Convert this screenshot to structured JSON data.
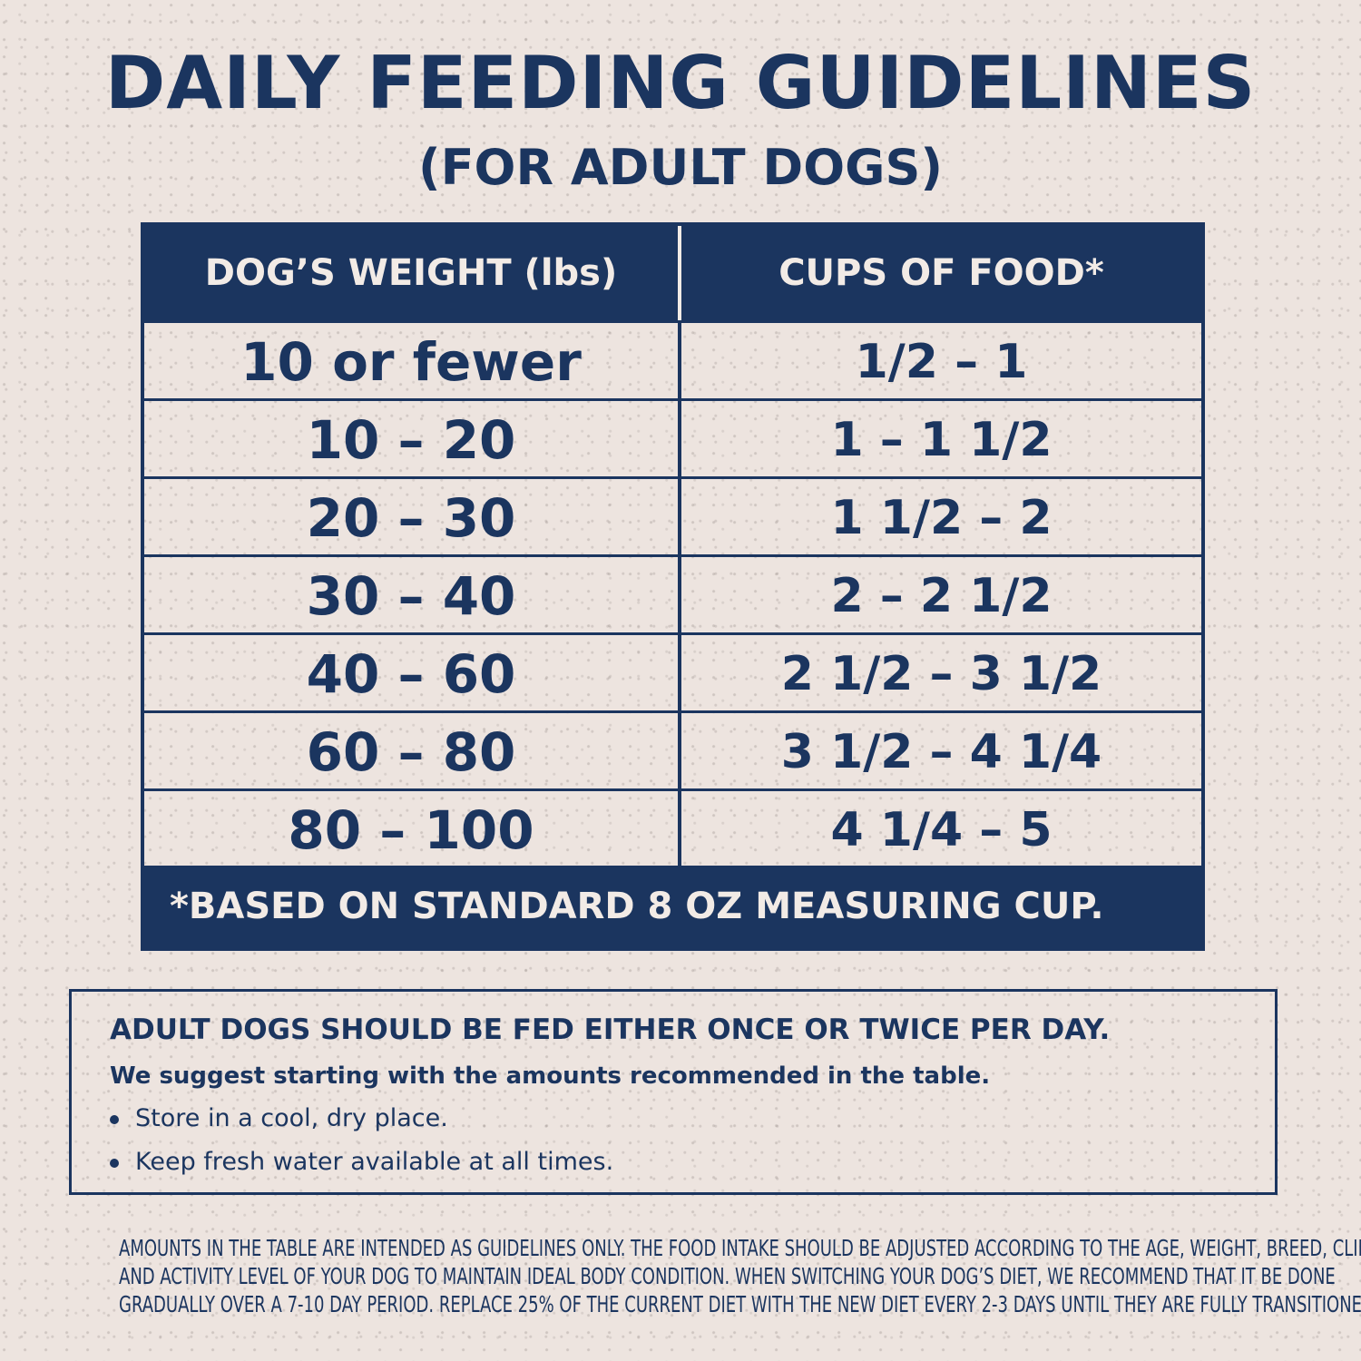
{
  "header": {
    "title": "DAILY FEEDING GUIDELINES",
    "subtitle": "(FOR ADULT DOGS)"
  },
  "table": {
    "columns": [
      "DOG’S WEIGHT (lbs)",
      "CUPS OF FOOD*"
    ],
    "rows": [
      [
        "10 or fewer",
        "1/2 – 1"
      ],
      [
        "10 – 20",
        "1 – 1 1/2"
      ],
      [
        "20 – 30",
        "1 1/2 – 2"
      ],
      [
        "30 – 40",
        "2 – 2 1/2"
      ],
      [
        "40 – 60",
        "2 1/2 – 3 1/2"
      ],
      [
        "60 – 80",
        "3 1/2 – 4 1/4"
      ],
      [
        "80 – 100",
        "4 1/4 – 5"
      ]
    ],
    "footnote": "*BASED ON STANDARD 8 OZ MEASURING CUP."
  },
  "info": {
    "heading": "ADULT DOGS SHOULD BE FED EITHER ONCE OR TWICE PER DAY.",
    "subheading": "We suggest starting with the amounts recommended in the table.",
    "bullets": [
      "Store in a cool, dry place.",
      "Keep fresh water available at all times."
    ]
  },
  "disclaimer": [
    "AMOUNTS IN THE TABLE ARE INTENDED AS GUIDELINES ONLY. THE FOOD INTAKE SHOULD BE ADJUSTED ACCORDING TO THE AGE, WEIGHT, BREED, CLIMATE,",
    "AND ACTIVITY LEVEL OF YOUR DOG TO MAINTAIN IDEAL BODY CONDITION. WHEN SWITCHING YOUR DOG’S DIET, WE RECOMMEND THAT IT BE DONE",
    "GRADUALLY OVER A 7-10 DAY PERIOD. REPLACE 25% OF THE CURRENT DIET WITH THE NEW DIET EVERY 2-3 DAYS UNTIL THEY ARE FULLY TRANSITIONED."
  ],
  "colors": {
    "navy": "#1b355f",
    "background": "#ede4df",
    "header_text": "#f2ebe6"
  }
}
